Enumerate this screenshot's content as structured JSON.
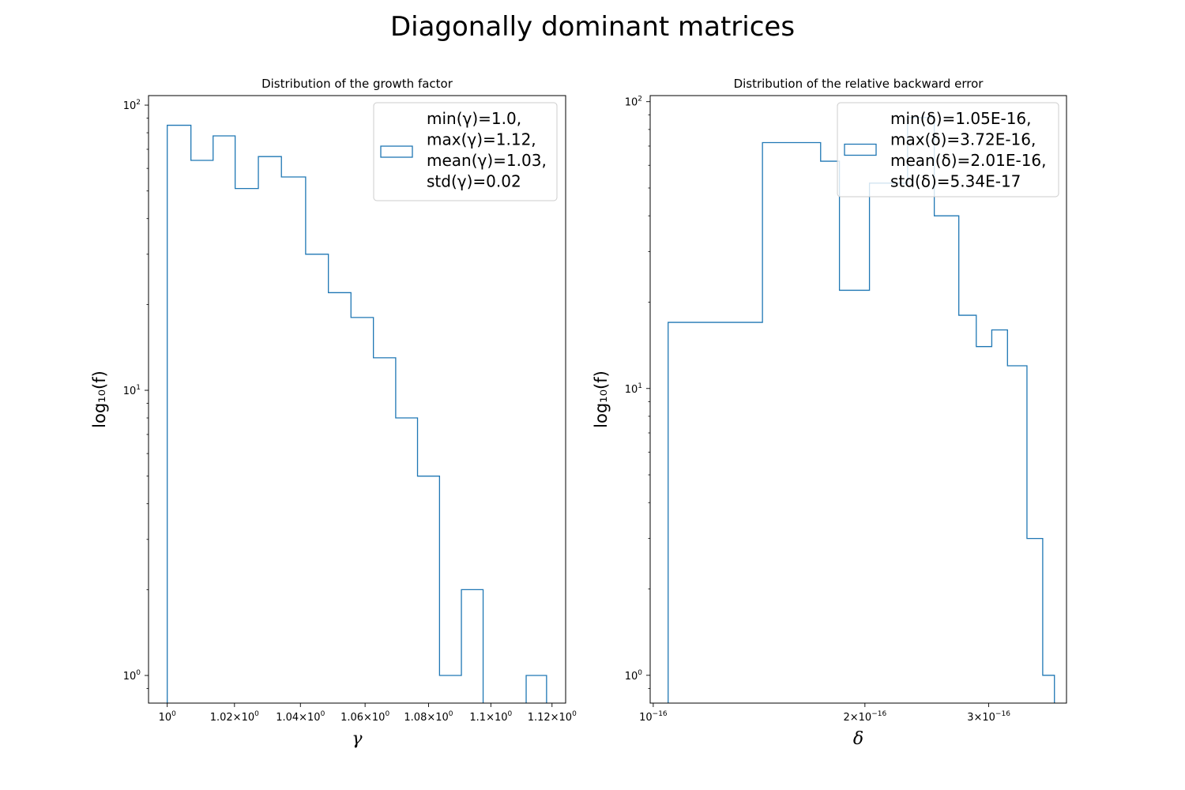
{
  "suptitle": "Diagonally dominant matrices",
  "colors": {
    "series": "#1f77b4",
    "axes": "#000000",
    "legend_edge": "#cccccc"
  },
  "chart_data": [
    {
      "type": "bar",
      "style": "step-histogram",
      "title": "Distribution of the growth factor",
      "xlabel": "γ",
      "ylabel": "log₁₀(f)",
      "xscale": "log",
      "yscale": "log",
      "xlim": [
        0.9945,
        1.1245
      ],
      "ylim": [
        0.8,
        108
      ],
      "xticks": [
        {
          "v": 1.0,
          "m": "10",
          "e": "0"
        },
        {
          "v": 1.02,
          "m": "1.02×10",
          "e": "0"
        },
        {
          "v": 1.04,
          "m": "1.04×10",
          "e": "0"
        },
        {
          "v": 1.06,
          "m": "1.06×10",
          "e": "0"
        },
        {
          "v": 1.08,
          "m": "1.08×10",
          "e": "0"
        },
        {
          "v": 1.1,
          "m": "1.1×10",
          "e": "0"
        },
        {
          "v": 1.12,
          "m": "1.12×10",
          "e": "0"
        }
      ],
      "yticks": [
        {
          "v": 1,
          "m": "10",
          "e": "0"
        },
        {
          "v": 10,
          "m": "10",
          "e": "1"
        },
        {
          "v": 100,
          "m": "10",
          "e": "2"
        }
      ],
      "bin_edges": [
        1.0,
        1.007,
        1.0136,
        1.0202,
        1.0272,
        1.0342,
        1.0416,
        1.0486,
        1.0556,
        1.0626,
        1.0696,
        1.0765,
        1.0835,
        1.0905,
        1.0975,
        1.1045,
        1.1115,
        1.1182
      ],
      "counts": [
        85,
        64,
        78,
        51,
        66,
        56,
        30,
        22,
        18,
        13,
        8,
        5,
        1,
        2,
        0,
        0,
        1
      ],
      "legend": {
        "position": "upper right",
        "lines": [
          "min(γ)=1.0,",
          "max(γ)=1.12,",
          "mean(γ)=1.03,",
          "std(γ)=0.02"
        ]
      }
    },
    {
      "type": "bar",
      "style": "step-histogram",
      "title": "Distribution of the relative backward error",
      "xlabel": "δ",
      "ylabel": "log₁₀(f)",
      "xscale": "log",
      "yscale": "log",
      "xlim": [
        9.9e-17,
        3.87e-16
      ],
      "ylim": [
        0.8,
        105
      ],
      "xticks": [
        {
          "v": 1e-16,
          "m": "10",
          "e": "−16"
        },
        {
          "v": 2e-16,
          "m": "2×10",
          "e": "−16"
        },
        {
          "v": 3e-16,
          "m": "3×10",
          "e": "−16"
        }
      ],
      "yticks": [
        {
          "v": 1,
          "m": "10",
          "e": "0"
        },
        {
          "v": 10,
          "m": "10",
          "e": "1"
        },
        {
          "v": 100,
          "m": "10",
          "e": "2"
        }
      ],
      "bin_edges": [
        1.05e-16,
        1.24e-16,
        1.43e-16,
        1.57e-16,
        1.73e-16,
        1.84e-16,
        2.03e-16,
        2.3e-16,
        2.51e-16,
        2.72e-16,
        2.88e-16,
        3.03e-16,
        3.19e-16,
        3.4e-16,
        3.58e-16,
        3.72e-16
      ],
      "counts": [
        17,
        17,
        72,
        72,
        62,
        22,
        52,
        88,
        40,
        18,
        14,
        16,
        12,
        3,
        1
      ],
      "legend": {
        "position": "upper right",
        "lines": [
          "min(δ)=1.05E-16,",
          "max(δ)=3.72E-16,",
          "mean(δ)=2.01E-16,",
          "std(δ)=5.34E-17"
        ]
      }
    }
  ]
}
